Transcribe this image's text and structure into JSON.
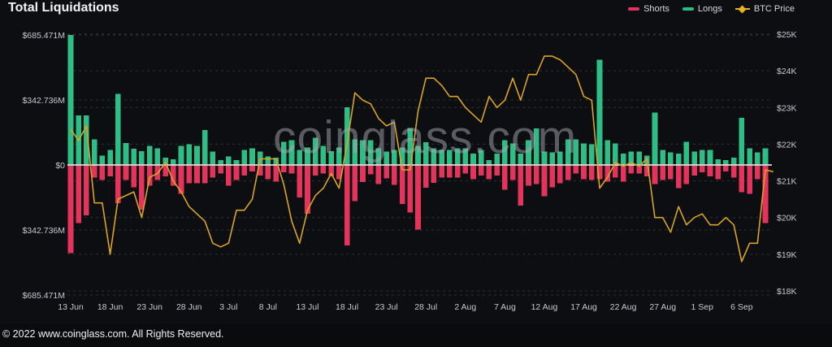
{
  "title": "Total Liquidations",
  "watermark": "coinglass.com",
  "footer": "© 2022 www.coinglass.com. All Rights Reserved.",
  "legend": [
    {
      "label": "Shorts",
      "color": "#e5345b",
      "type": "bar"
    },
    {
      "label": "Longs",
      "color": "#2ebd85",
      "type": "bar"
    },
    {
      "label": "BTC Price",
      "color": "#e8b31f",
      "type": "line"
    }
  ],
  "colors": {
    "background": "#0d0e11",
    "shorts_bar": "#e5345b",
    "longs_bar": "#2ebd85",
    "btc_line": "#d9a426",
    "zero_line": "#dcdcde",
    "gridline": "rgba(255,255,255,0.14)"
  },
  "chart_data": {
    "type": "bar",
    "subtype": "combo-diverging-bars-with-line",
    "unit_bars": "USD millions (liquidations per day)",
    "unit_line": "BTC price in thousand USD (right axis)",
    "dates": [
      "13 Jun",
      "14 Jun",
      "15 Jun",
      "16 Jun",
      "17 Jun",
      "18 Jun",
      "19 Jun",
      "20 Jun",
      "21 Jun",
      "22 Jun",
      "23 Jun",
      "24 Jun",
      "25 Jun",
      "26 Jun",
      "27 Jun",
      "28 Jun",
      "29 Jun",
      "30 Jun",
      "1 Jul",
      "2 Jul",
      "3 Jul",
      "4 Jul",
      "5 Jul",
      "6 Jul",
      "7 Jul",
      "8 Jul",
      "9 Jul",
      "10 Jul",
      "11 Jul",
      "12 Jul",
      "13 Jul",
      "14 Jul",
      "15 Jul",
      "16 Jul",
      "17 Jul",
      "18 Jul",
      "19 Jul",
      "20 Jul",
      "21 Jul",
      "22 Jul",
      "23 Jul",
      "24 Jul",
      "25 Jul",
      "26 Jul",
      "27 Jul",
      "28 Jul",
      "29 Jul",
      "30 Jul",
      "31 Jul",
      "1 Aug",
      "2 Aug",
      "3 Aug",
      "4 Aug",
      "5 Aug",
      "6 Aug",
      "7 Aug",
      "8 Aug",
      "9 Aug",
      "10 Aug",
      "11 Aug",
      "12 Aug",
      "13 Aug",
      "14 Aug",
      "15 Aug",
      "16 Aug",
      "17 Aug",
      "18 Aug",
      "19 Aug",
      "20 Aug",
      "21 Aug",
      "22 Aug",
      "23 Aug",
      "24 Aug",
      "25 Aug",
      "26 Aug",
      "27 Aug",
      "28 Aug",
      "29 Aug",
      "30 Aug",
      "31 Aug",
      "1 Sep",
      "2 Sep",
      "3 Sep",
      "4 Sep",
      "5 Sep",
      "6 Sep",
      "7 Sep",
      "8 Sep",
      "9 Sep",
      "10 Sep"
    ],
    "series": [
      {
        "name": "Longs",
        "type": "bar",
        "direction": "up",
        "color": "#2ebd85",
        "values": [
          685.47,
          261,
          261,
          135,
          50,
          80,
          374,
          115,
          85,
          72,
          100,
          88,
          38,
          30,
          101,
          110,
          101,
          185,
          71,
          25,
          46,
          25,
          80,
          88,
          71,
          46,
          38,
          122,
          130,
          80,
          93,
          143,
          101,
          72,
          93,
          304,
          135,
          130,
          130,
          88,
          71,
          80,
          93,
          195,
          101,
          120,
          88,
          80,
          80,
          88,
          88,
          59,
          80,
          25,
          59,
          130,
          114,
          59,
          130,
          193,
          71,
          67,
          71,
          135,
          135,
          114,
          110,
          555,
          130,
          114,
          59,
          71,
          71,
          50,
          277,
          80,
          67,
          59,
          122,
          71,
          80,
          80,
          30,
          25,
          38,
          248,
          88,
          67,
          87,
          0
        ]
      },
      {
        "name": "Shorts",
        "type": "bar",
        "direction": "down",
        "color": "#e5345b",
        "values": [
          465,
          307,
          265,
          67,
          80,
          59,
          201,
          80,
          118,
          236,
          110,
          80,
          59,
          110,
          152,
          97,
          97,
          97,
          67,
          46,
          110,
          80,
          55,
          34,
          55,
          76,
          88,
          38,
          46,
          172,
          256,
          55,
          46,
          59,
          76,
          425,
          190,
          90,
          50,
          100,
          70,
          105,
          205,
          250,
          340,
          120,
          95,
          67,
          67,
          67,
          46,
          76,
          55,
          76,
          55,
          130,
          80,
          214,
          110,
          101,
          164,
          118,
          97,
          80,
          46,
          76,
          80,
          76,
          88,
          67,
          88,
          46,
          46,
          59,
          101,
          80,
          76,
          122,
          101,
          55,
          38,
          59,
          76,
          34,
          67,
          143,
          152,
          74,
          307,
          0
        ]
      },
      {
        "name": "BTC Price",
        "type": "line",
        "axis": "right",
        "color": "#d9a426",
        "values": [
          22.4,
          22.1,
          22.5,
          20.4,
          20.4,
          19.0,
          20.5,
          20.6,
          20.7,
          20.0,
          21.1,
          21.2,
          21.5,
          21.0,
          20.7,
          20.3,
          20.1,
          19.9,
          19.3,
          19.2,
          19.3,
          20.2,
          20.2,
          20.5,
          21.6,
          21.6,
          21.6,
          20.9,
          19.9,
          19.3,
          20.2,
          20.6,
          20.8,
          21.2,
          20.8,
          22.0,
          23.4,
          23.2,
          23.1,
          22.7,
          22.5,
          22.6,
          21.3,
          21.3,
          22.9,
          23.8,
          23.8,
          23.6,
          23.3,
          23.3,
          23.0,
          22.8,
          22.6,
          23.3,
          23.0,
          23.2,
          23.8,
          23.2,
          23.9,
          23.9,
          24.4,
          24.4,
          24.3,
          24.1,
          23.9,
          23.3,
          23.2,
          20.8,
          21.1,
          21.5,
          21.4,
          21.5,
          21.4,
          21.6,
          20.0,
          20.0,
          19.6,
          20.3,
          19.8,
          20.0,
          20.1,
          19.8,
          19.8,
          20.0,
          19.8,
          18.8,
          19.3,
          19.3,
          21.3,
          21.25
        ]
      }
    ],
    "left_axis": {
      "labels": [
        "$685.471M",
        "$342.736M",
        "$0",
        "$342.736M",
        "$685.471M"
      ],
      "fractions": [
        1,
        0.5,
        0,
        -0.5,
        -1
      ],
      "max_abs_millions": 685.471
    },
    "right_axis": {
      "labels": [
        "$25K",
        "$24K",
        "$23K",
        "$22K",
        "$21K",
        "$20K",
        "$19K",
        "$18K"
      ],
      "max_k": 25,
      "min_k": 18
    },
    "x_tick_labels": [
      "13 Jun",
      "18 Jun",
      "23 Jun",
      "28 Jun",
      "3 Jul",
      "8 Jul",
      "13 Jul",
      "18 Jul",
      "23 Jul",
      "28 Jul",
      "2 Aug",
      "7 Aug",
      "12 Aug",
      "17 Aug",
      "22 Aug",
      "27 Aug",
      "1 Sep",
      "6 Sep"
    ],
    "x_tick_every": 5,
    "grid": "dashed horizontal",
    "legend_position": "top-right"
  }
}
